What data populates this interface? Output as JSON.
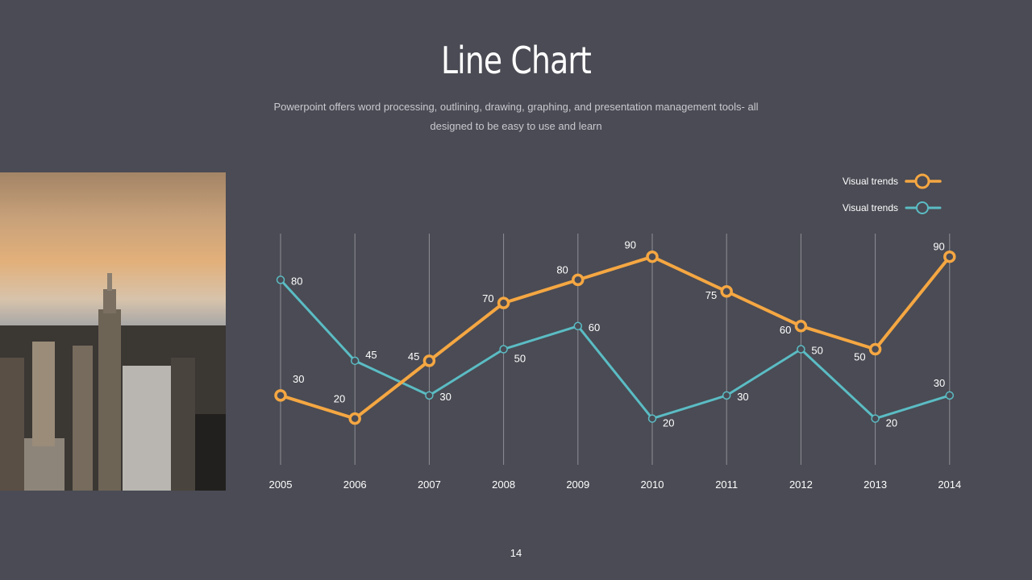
{
  "slide": {
    "title": "Line Chart",
    "subtitle": "Powerpoint offers word processing, outlining, drawing, graphing, and presentation management tools- all designed to be easy to use and learn",
    "page_number": "14"
  },
  "colors": {
    "background": "#4a4b54",
    "orange": "#f5a742",
    "teal": "#5bbcc4",
    "grid": "#8e8f96"
  },
  "chart_data": {
    "type": "line",
    "title": "",
    "xlabel": "",
    "ylabel": "",
    "ylim": [
      0,
      100
    ],
    "grid": "vertical",
    "legend_placement": "top-right",
    "categories": [
      "2005",
      "2006",
      "2007",
      "2008",
      "2009",
      "2010",
      "2011",
      "2012",
      "2013",
      "2014"
    ],
    "series": [
      {
        "name": "Visual trends",
        "color": "#f5a742",
        "values": [
          30,
          20,
          45,
          70,
          80,
          90,
          75,
          60,
          50,
          90
        ]
      },
      {
        "name": "Visual trends",
        "color": "#5bbcc4",
        "values": [
          80,
          45,
          30,
          50,
          60,
          20,
          30,
          50,
          20,
          30
        ]
      }
    ]
  }
}
